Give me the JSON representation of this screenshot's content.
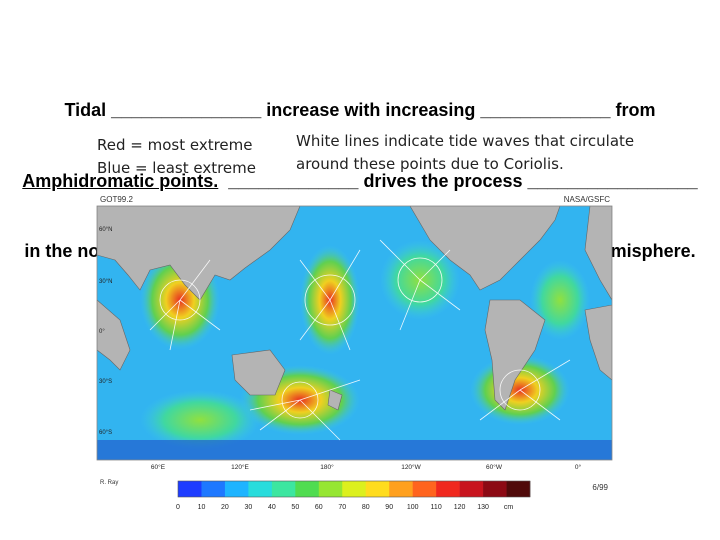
{
  "prompt": {
    "line1": "Tidal _______________ increase with increasing _____________ from",
    "line2_underlined": "Amphidromatic points.",
    "line2_rest": "  _____________ drives the process _________________",
    "line3": "in the northern hemisphere and _______________ in the southern hemisphere."
  },
  "notes": {
    "left": [
      "Red = most extreme",
      "Blue = least extreme"
    ],
    "right": [
      "White lines indicate tide waves that circulate",
      "around these points due to Coriolis."
    ]
  },
  "map": {
    "model": "GOT99.2",
    "source": "NASA/GSFC",
    "lat_labels": [
      "60°N",
      "30°N",
      "0°",
      "30°S",
      "60°S"
    ],
    "lon_labels": [
      "60°E",
      "120°E",
      "180°",
      "120°W",
      "60°W",
      "0°"
    ],
    "author": "R. Ray",
    "date": "6/99"
  },
  "colorbar": {
    "ticks": [
      0,
      10,
      20,
      30,
      40,
      50,
      60,
      70,
      80,
      90,
      100,
      110,
      120,
      130
    ],
    "unit": "cm",
    "colors": [
      "#1e3cff",
      "#1e78ff",
      "#1eb4ff",
      "#28dcdc",
      "#3ce6a0",
      "#50dc50",
      "#96e632",
      "#dcf01e",
      "#ffdc1e",
      "#ffa01e",
      "#ff641e",
      "#f0281e",
      "#c8141e",
      "#8c0a14",
      "#500a0a"
    ]
  }
}
